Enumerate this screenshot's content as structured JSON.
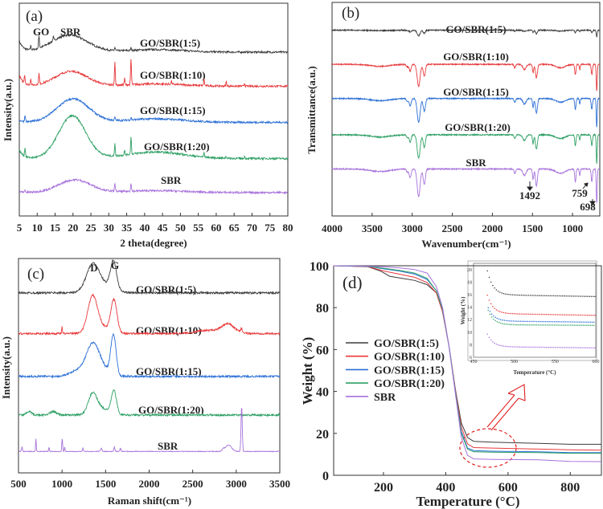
{
  "colors": {
    "GO/SBR(1:5)": "#3c3c3c",
    "GO/SBR(1:10)": "#e8393b",
    "GO/SBR(1:15)": "#2b6fd6",
    "GO/SBR(1:20)": "#2ea064",
    "SBR": "#a772dc",
    "annotation": "#e02020"
  },
  "chart_data": [
    {
      "panel": "(a)",
      "type": "line",
      "xlabel": "2 theta(degree)",
      "ylabel": "Intensity(a.u.)",
      "xlim": [
        5,
        80
      ],
      "ylim": [
        0,
        100
      ],
      "xticks": [
        5,
        10,
        15,
        20,
        25,
        30,
        35,
        40,
        45,
        50,
        55,
        60,
        65,
        70,
        75,
        80
      ],
      "annotations": [
        "GO",
        "SBR"
      ],
      "series": [
        {
          "name": "GO/SBR(1:5)",
          "label": "GO/SBR(1:5)",
          "baseline": 77,
          "hump": {
            "center": 19,
            "height": 8,
            "width": 5
          },
          "lowangle": 5,
          "peaks": [
            [
              10.5,
              6
            ],
            [
              8.2,
              2
            ],
            [
              14.5,
              2
            ],
            [
              31.7,
              1.5
            ],
            [
              36.2,
              1.2
            ]
          ]
        },
        {
          "name": "GO/SBR(1:10)",
          "label": "GO/SBR(1:10)",
          "baseline": 61,
          "hump": {
            "center": 19.5,
            "height": 7,
            "width": 4.5
          },
          "lowangle": 5,
          "peaks": [
            [
              6.5,
              4
            ],
            [
              8.2,
              3
            ],
            [
              10.5,
              5
            ],
            [
              31.7,
              11
            ],
            [
              34.4,
              3
            ],
            [
              36.2,
              12
            ],
            [
              47.5,
              1.5
            ],
            [
              56.6,
              3
            ],
            [
              62.8,
              2
            ],
            [
              67.9,
              1.5
            ]
          ]
        },
        {
          "name": "GO/SBR(1:15)",
          "label": "GO/SBR(1:15)",
          "baseline": 44,
          "hump": {
            "center": 20,
            "height": 11,
            "width": 4.5
          },
          "lowangle": 1,
          "peaks": [
            [
              6.6,
              3
            ],
            [
              31.7,
              1.5
            ],
            [
              36.2,
              1.2
            ]
          ]
        },
        {
          "name": "GO/SBR(1:20)",
          "label": "GO/SBR(1:20)",
          "baseline": 27,
          "hump": {
            "center": 19.8,
            "height": 20,
            "width": 3.8
          },
          "lowangle": 4,
          "peaks": [
            [
              6.6,
              4
            ],
            [
              31.7,
              6
            ],
            [
              34.4,
              2
            ],
            [
              36.2,
              8
            ],
            [
              47.5,
              1
            ],
            [
              56.6,
              2
            ],
            [
              62.8,
              1
            ],
            [
              67.9,
              1
            ]
          ]
        },
        {
          "name": "SBR",
          "label": "SBR",
          "baseline": 11,
          "hump": {
            "center": 20.5,
            "height": 6,
            "width": 4.5
          },
          "lowangle": 0.5,
          "peaks": [
            [
              6.6,
              1
            ],
            [
              31.7,
              4
            ],
            [
              36.2,
              4
            ]
          ]
        }
      ]
    },
    {
      "panel": "(b)",
      "type": "line",
      "xlabel": "Wavenumber(cm⁻¹)",
      "ylabel": "Transmittance(a.u.)",
      "xlim": [
        4000,
        660
      ],
      "ylim": [
        0,
        100
      ],
      "xticks": [
        4000,
        3500,
        3000,
        2500,
        2000,
        1500,
        1000
      ],
      "annotations": [
        "1492",
        "759",
        "698"
      ],
      "series": [
        {
          "name": "GO/SBR(1:5)",
          "label": "GO/SBR(1:5)",
          "baseline": 87,
          "scale": 0.2
        },
        {
          "name": "GO/SBR(1:10)",
          "label": "GO/SBR(1:10)",
          "baseline": 71,
          "scale": 0.8
        },
        {
          "name": "GO/SBR(1:15)",
          "label": "GO/SBR(1:15)",
          "baseline": 55,
          "scale": 0.85
        },
        {
          "name": "GO/SBR(1:20)",
          "label": "GO/SBR(1:20)",
          "baseline": 38,
          "scale": 0.85
        },
        {
          "name": "SBR",
          "label": "SBR",
          "baseline": 22,
          "scale": 1.0
        }
      ],
      "absorption_bands": [
        [
          3400,
          1.2,
          120
        ],
        [
          3060,
          1.5,
          12
        ],
        [
          3025,
          4,
          12
        ],
        [
          2920,
          13,
          18
        ],
        [
          2850,
          7,
          14
        ],
        [
          1720,
          2,
          10
        ],
        [
          1600,
          3,
          20
        ],
        [
          1492,
          5,
          8
        ],
        [
          1450,
          8,
          12
        ],
        [
          1150,
          2,
          60
        ],
        [
          965,
          6,
          8
        ],
        [
          910,
          3,
          6
        ],
        [
          759,
          6,
          8
        ],
        [
          698,
          16,
          6
        ]
      ]
    },
    {
      "panel": "(c)",
      "type": "line",
      "xlabel": "Raman shift(cm⁻¹)",
      "ylabel": "Intensity(a.u.)",
      "xlim": [
        500,
        3500
      ],
      "ylim": [
        0,
        100
      ],
      "xticks": [
        500,
        1000,
        1500,
        2000,
        2500,
        3000,
        3500
      ],
      "annotations": [
        "D",
        "G"
      ],
      "series": [
        {
          "name": "GO/SBR(1:5)",
          "label": "GO/SBR(1:5)",
          "baseline": 84,
          "peaks": [
            [
              1350,
              11,
              70
            ],
            [
              1590,
              13,
              35
            ],
            [
              1450,
              4,
              120
            ]
          ]
        },
        {
          "name": "GO/SBR(1:10)",
          "label": "GO/SBR(1:10)",
          "baseline": 65,
          "peaks": [
            [
              1350,
              16,
              55
            ],
            [
              1595,
              15,
              35
            ],
            [
              1450,
              3,
              100
            ],
            [
              1000,
              3,
              4
            ],
            [
              2910,
              4,
              70
            ],
            [
              2700,
              1.5,
              150
            ],
            [
              3060,
              2,
              10
            ]
          ]
        },
        {
          "name": "GO/SBR(1:15)",
          "label": "GO/SBR(1:15)",
          "baseline": 45,
          "peaks": [
            [
              1350,
              13,
              70
            ],
            [
              1590,
              19,
              30
            ],
            [
              1200,
              3,
              100
            ],
            [
              1450,
              4,
              80
            ]
          ]
        },
        {
          "name": "GO/SBR(1:20)",
          "label": "GO/SBR(1:20)",
          "baseline": 27,
          "peaks": [
            [
              1350,
              9,
              50
            ],
            [
              1595,
              11,
              30
            ],
            [
              1450,
              3,
              80
            ],
            [
              900,
              1.5,
              40
            ],
            [
              620,
              1.5,
              30
            ]
          ]
        },
        {
          "name": "SBR",
          "label": "SBR",
          "baseline": 10,
          "peaks": [
            [
              700,
              6,
              4
            ],
            [
              540,
              2,
              6
            ],
            [
              850,
              2,
              4
            ],
            [
              1002,
              6,
              5
            ],
            [
              1030,
              2,
              4
            ],
            [
              1240,
              1.5,
              5
            ],
            [
              1450,
              1.5,
              8
            ],
            [
              1600,
              2,
              6
            ],
            [
              1670,
              1.5,
              6
            ],
            [
              2910,
              3,
              35
            ],
            [
              2850,
              1,
              10
            ],
            [
              3062,
              21,
              7
            ]
          ]
        }
      ]
    },
    {
      "panel": "(d)",
      "type": "line",
      "xlabel": "Temperature (°C)",
      "ylabel": "Weight (%)",
      "xlim": [
        40,
        900
      ],
      "ylim": [
        0,
        100
      ],
      "xticks": [
        200,
        400,
        600,
        800
      ],
      "yticks": [
        0,
        20,
        40,
        60,
        80,
        100
      ],
      "legend": "center-left",
      "series": [
        {
          "name": "GO/SBR(1:5)",
          "points": [
            [
              40,
              100
            ],
            [
              150,
              99.5
            ],
            [
              190,
              97.5
            ],
            [
              220,
              95
            ],
            [
              260,
              94
            ],
            [
              300,
              93
            ],
            [
              340,
              91
            ],
            [
              370,
              87
            ],
            [
              390,
              78
            ],
            [
              410,
              62
            ],
            [
              430,
              42
            ],
            [
              450,
              25
            ],
            [
              470,
              18
            ],
            [
              490,
              16.2
            ],
            [
              550,
              15.8
            ],
            [
              700,
              15.2
            ],
            [
              800,
              14.8
            ],
            [
              900,
              14.8
            ]
          ]
        },
        {
          "name": "GO/SBR(1:10)",
          "points": [
            [
              40,
              100
            ],
            [
              150,
              99.6
            ],
            [
              200,
              97.5
            ],
            [
              250,
              96
            ],
            [
              300,
              94.5
            ],
            [
              340,
              92
            ],
            [
              370,
              87
            ],
            [
              390,
              78
            ],
            [
              410,
              62
            ],
            [
              430,
              42
            ],
            [
              450,
              23
            ],
            [
              470,
              15
            ],
            [
              490,
              13.2
            ],
            [
              550,
              13
            ],
            [
              700,
              12.5
            ],
            [
              800,
              12.2
            ],
            [
              900,
              12
            ]
          ]
        },
        {
          "name": "GO/SBR(1:15)",
          "points": [
            [
              40,
              100
            ],
            [
              150,
              99.7
            ],
            [
              200,
              98.5
            ],
            [
              250,
              97.5
            ],
            [
              300,
              96
            ],
            [
              340,
              93.5
            ],
            [
              370,
              88
            ],
            [
              390,
              79
            ],
            [
              410,
              62
            ],
            [
              430,
              41
            ],
            [
              450,
              21
            ],
            [
              470,
              13
            ],
            [
              490,
              11.8
            ],
            [
              550,
              11.5
            ],
            [
              700,
              11.2
            ],
            [
              800,
              10.8
            ],
            [
              900,
              10.8
            ]
          ]
        },
        {
          "name": "GO/SBR(1:20)",
          "points": [
            [
              40,
              100
            ],
            [
              150,
              99.7
            ],
            [
              200,
              98.8
            ],
            [
              250,
              97.8
            ],
            [
              300,
              96.5
            ],
            [
              340,
              94
            ],
            [
              370,
              88
            ],
            [
              390,
              79
            ],
            [
              410,
              62
            ],
            [
              430,
              41
            ],
            [
              450,
              20
            ],
            [
              470,
              12.5
            ],
            [
              490,
              11.2
            ],
            [
              550,
              11
            ],
            [
              700,
              10.8
            ],
            [
              800,
              10.5
            ],
            [
              900,
              10.5
            ]
          ]
        },
        {
          "name": "SBR",
          "points": [
            [
              40,
              100
            ],
            [
              150,
              99.8
            ],
            [
              200,
              99.5
            ],
            [
              250,
              99
            ],
            [
              300,
              98.2
            ],
            [
              340,
              96.5
            ],
            [
              370,
              90
            ],
            [
              390,
              80
            ],
            [
              410,
              62
            ],
            [
              430,
              40
            ],
            [
              450,
              18
            ],
            [
              470,
              9.5
            ],
            [
              490,
              7.8
            ],
            [
              550,
              7.6
            ],
            [
              700,
              7.4
            ],
            [
              800,
              6.6
            ],
            [
              900,
              6.5
            ]
          ]
        }
      ],
      "inset": {
        "xlabel": "Temperature (°C)",
        "ylabel": "Weight (%)",
        "xlim": [
          450,
          600
        ],
        "ylim": [
          6,
          21
        ],
        "xticks": [
          450,
          500,
          550,
          600
        ],
        "yticks": [
          6,
          8,
          10,
          12,
          14,
          16,
          18,
          20
        ],
        "series": [
          {
            "name": "GO/SBR(1:5)",
            "start": [
              467,
              19.8
            ],
            "plateau": 16.0,
            "end": 15.7
          },
          {
            "name": "GO/SBR(1:10)",
            "start": [
              467,
              15.9
            ],
            "plateau": 13.0,
            "end": 12.7
          },
          {
            "name": "GO/SBR(1:15)",
            "start": [
              468,
              13.9
            ],
            "plateau": 11.8,
            "end": 11.6
          },
          {
            "name": "GO/SBR(1:20)",
            "start": [
              468,
              13.5
            ],
            "plateau": 11.2,
            "end": 11.1
          },
          {
            "name": "SBR",
            "start": [
              467,
              9.7
            ],
            "plateau": 7.7,
            "end": 7.5
          }
        ]
      }
    }
  ]
}
